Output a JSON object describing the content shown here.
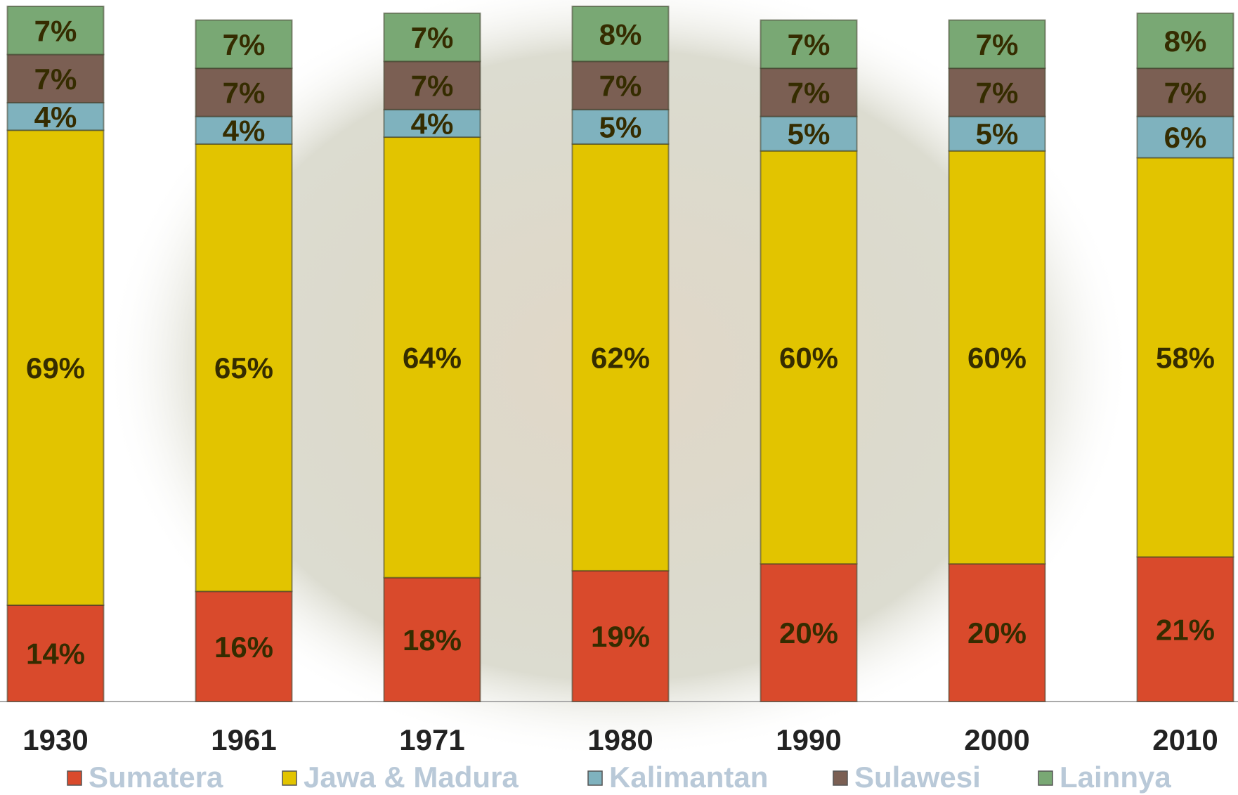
{
  "chart_data": {
    "type": "bar",
    "stacked": true,
    "categories": [
      "1930",
      "1961",
      "1971",
      "1980",
      "1990",
      "2000",
      "2010"
    ],
    "series": [
      {
        "name": "Sumatera",
        "color": "#d94a2c",
        "values": [
          14,
          16,
          18,
          19,
          20,
          20,
          21
        ],
        "value_labels": [
          "14%",
          "16%",
          "18%",
          "19%",
          "20%",
          "20%",
          "21%"
        ]
      },
      {
        "name": "Jawa & Madura",
        "color": "#e2c400",
        "values": [
          69,
          65,
          64,
          62,
          60,
          60,
          58
        ],
        "value_labels": [
          "69%",
          "65%",
          "64%",
          "62%",
          "60%",
          "60%",
          "58%"
        ]
      },
      {
        "name": "Kalimantan",
        "color": "#7fb2be",
        "values": [
          4,
          4,
          4,
          5,
          5,
          5,
          6
        ],
        "value_labels": [
          "4%",
          "4%",
          "4%",
          "5%",
          "5%",
          "5%",
          "6%"
        ]
      },
      {
        "name": "Sulawesi",
        "color": "#7b5f53",
        "values": [
          7,
          7,
          7,
          7,
          7,
          7,
          7
        ],
        "value_labels": [
          "7%",
          "7%",
          "7%",
          "7%",
          "7%",
          "7%",
          "7%"
        ]
      },
      {
        "name": "Lainnya",
        "color": "#79a874",
        "values": [
          7,
          7,
          7,
          8,
          7,
          7,
          8
        ],
        "value_labels": [
          "7%",
          "7%",
          "7%",
          "8%",
          "7%",
          "7%",
          "8%"
        ]
      }
    ],
    "ylim": [
      0,
      101
    ],
    "legend": "bottom"
  }
}
